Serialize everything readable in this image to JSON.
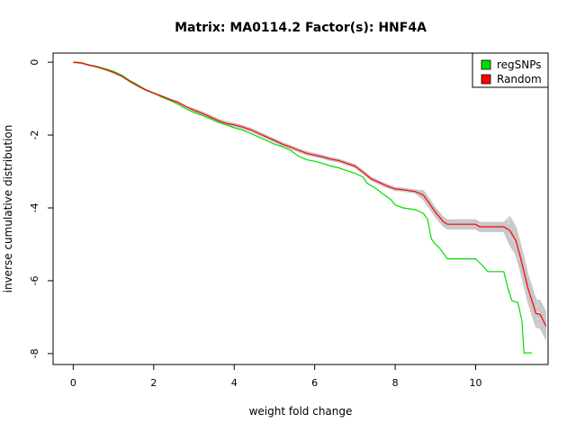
{
  "chart_data": {
    "type": "line",
    "title": "Matrix: MA0114.2 Factor(s): HNF4A",
    "xlabel": "weight fold change",
    "ylabel": "inverse cumulative distribution",
    "xlim": [
      -0.5,
      11.8
    ],
    "ylim": [
      -8.3,
      0.25
    ],
    "x_ticks": [
      0,
      2,
      4,
      6,
      8,
      10
    ],
    "y_ticks": [
      0,
      -2,
      -4,
      -6,
      -8
    ],
    "grid": false,
    "legend_position": "top-right",
    "legend": [
      {
        "label": "regSNPs",
        "color": "#00dd00"
      },
      {
        "label": "Random",
        "color": "#ff0000"
      }
    ],
    "series": [
      {
        "name": "regSNPs",
        "color": "#00dd00",
        "points": [
          [
            0,
            0
          ],
          [
            0.2,
            -0.02
          ],
          [
            0.4,
            -0.08
          ],
          [
            0.6,
            -0.12
          ],
          [
            0.8,
            -0.18
          ],
          [
            1.0,
            -0.25
          ],
          [
            1.2,
            -0.35
          ],
          [
            1.4,
            -0.5
          ],
          [
            1.6,
            -0.62
          ],
          [
            1.8,
            -0.75
          ],
          [
            2.0,
            -0.85
          ],
          [
            2.2,
            -0.96
          ],
          [
            2.4,
            -1.05
          ],
          [
            2.6,
            -1.15
          ],
          [
            2.8,
            -1.28
          ],
          [
            3.0,
            -1.38
          ],
          [
            3.2,
            -1.46
          ],
          [
            3.4,
            -1.55
          ],
          [
            3.6,
            -1.65
          ],
          [
            3.8,
            -1.72
          ],
          [
            4.0,
            -1.8
          ],
          [
            4.2,
            -1.86
          ],
          [
            4.4,
            -1.95
          ],
          [
            4.6,
            -2.05
          ],
          [
            4.8,
            -2.15
          ],
          [
            5.0,
            -2.25
          ],
          [
            5.2,
            -2.32
          ],
          [
            5.4,
            -2.42
          ],
          [
            5.6,
            -2.58
          ],
          [
            5.8,
            -2.68
          ],
          [
            6.0,
            -2.72
          ],
          [
            6.2,
            -2.78
          ],
          [
            6.4,
            -2.85
          ],
          [
            6.6,
            -2.9
          ],
          [
            6.8,
            -2.98
          ],
          [
            7.0,
            -3.05
          ],
          [
            7.2,
            -3.15
          ],
          [
            7.3,
            -3.32
          ],
          [
            7.5,
            -3.45
          ],
          [
            7.7,
            -3.62
          ],
          [
            7.9,
            -3.78
          ],
          [
            8.0,
            -3.92
          ],
          [
            8.2,
            -4.0
          ],
          [
            8.5,
            -4.05
          ],
          [
            8.7,
            -4.15
          ],
          [
            8.8,
            -4.3
          ],
          [
            8.9,
            -4.85
          ],
          [
            9.0,
            -5.0
          ],
          [
            9.1,
            -5.1
          ],
          [
            9.3,
            -5.4
          ],
          [
            10.0,
            -5.4
          ],
          [
            10.2,
            -5.62
          ],
          [
            10.3,
            -5.75
          ],
          [
            10.7,
            -5.75
          ],
          [
            10.8,
            -6.2
          ],
          [
            10.9,
            -6.55
          ],
          [
            11.05,
            -6.6
          ],
          [
            11.15,
            -7.1
          ],
          [
            11.2,
            -7.98
          ],
          [
            11.4,
            -7.98
          ]
        ]
      },
      {
        "name": "Random",
        "color": "#ff0000",
        "points": [
          [
            0,
            0
          ],
          [
            0.2,
            -0.02
          ],
          [
            0.4,
            -0.08
          ],
          [
            0.6,
            -0.13
          ],
          [
            0.8,
            -0.2
          ],
          [
            1.0,
            -0.28
          ],
          [
            1.2,
            -0.38
          ],
          [
            1.4,
            -0.52
          ],
          [
            1.6,
            -0.65
          ],
          [
            1.8,
            -0.76
          ],
          [
            2.0,
            -0.85
          ],
          [
            2.2,
            -0.93
          ],
          [
            2.4,
            -1.02
          ],
          [
            2.6,
            -1.1
          ],
          [
            2.8,
            -1.22
          ],
          [
            3.0,
            -1.32
          ],
          [
            3.2,
            -1.4
          ],
          [
            3.4,
            -1.5
          ],
          [
            3.6,
            -1.6
          ],
          [
            3.8,
            -1.68
          ],
          [
            4.0,
            -1.72
          ],
          [
            4.2,
            -1.78
          ],
          [
            4.4,
            -1.85
          ],
          [
            4.6,
            -1.95
          ],
          [
            4.8,
            -2.05
          ],
          [
            5.0,
            -2.15
          ],
          [
            5.2,
            -2.25
          ],
          [
            5.4,
            -2.33
          ],
          [
            5.6,
            -2.42
          ],
          [
            5.8,
            -2.5
          ],
          [
            6.0,
            -2.55
          ],
          [
            6.2,
            -2.6
          ],
          [
            6.4,
            -2.66
          ],
          [
            6.6,
            -2.7
          ],
          [
            6.8,
            -2.78
          ],
          [
            7.0,
            -2.85
          ],
          [
            7.2,
            -3.02
          ],
          [
            7.4,
            -3.2
          ],
          [
            7.6,
            -3.3
          ],
          [
            7.8,
            -3.4
          ],
          [
            8.0,
            -3.48
          ],
          [
            8.2,
            -3.5
          ],
          [
            8.5,
            -3.55
          ],
          [
            8.7,
            -3.65
          ],
          [
            8.8,
            -3.8
          ],
          [
            9.0,
            -4.12
          ],
          [
            9.2,
            -4.38
          ],
          [
            9.3,
            -4.45
          ],
          [
            10.0,
            -4.45
          ],
          [
            10.1,
            -4.52
          ],
          [
            10.7,
            -4.52
          ],
          [
            10.85,
            -4.62
          ],
          [
            11.0,
            -4.9
          ],
          [
            11.1,
            -5.3
          ],
          [
            11.2,
            -5.75
          ],
          [
            11.3,
            -6.2
          ],
          [
            11.4,
            -6.55
          ],
          [
            11.5,
            -6.9
          ],
          [
            11.6,
            -6.92
          ],
          [
            11.75,
            -7.25
          ]
        ]
      }
    ],
    "background_series": {
      "color": "#c8c8c8",
      "count": 60
    }
  }
}
